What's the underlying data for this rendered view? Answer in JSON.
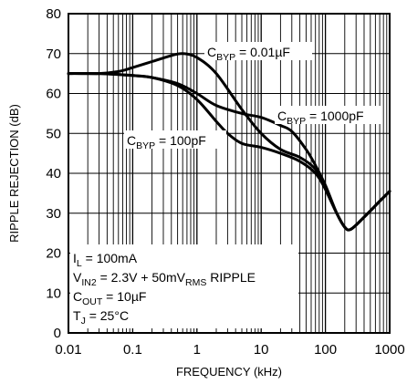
{
  "chart_data": {
    "type": "line",
    "xlabel": "FREQUENCY (kHz)",
    "ylabel": "RIPPLE REJECTION (dB)",
    "xscale": "log",
    "xlim": [
      0.01,
      1000
    ],
    "ylim": [
      0,
      80
    ],
    "grid": true,
    "x_ticks": [
      "0.01",
      "0.1",
      "1",
      "10",
      "100",
      "1000"
    ],
    "y_ticks": [
      "0",
      "10",
      "20",
      "30",
      "40",
      "50",
      "60",
      "70",
      "80"
    ],
    "series": [
      {
        "name": "CBYP = 0.01µF",
        "x": [
          0.01,
          0.03,
          0.06,
          0.1,
          0.2,
          0.4,
          0.6,
          1,
          2,
          5,
          10,
          20,
          40,
          70,
          100,
          150,
          200,
          250,
          400,
          700,
          1000
        ],
        "y": [
          65,
          65,
          65.5,
          66.5,
          68,
          69.5,
          70,
          69,
          65,
          56,
          50,
          46,
          44,
          41,
          36,
          30,
          26.5,
          26,
          29,
          33,
          35.5
        ]
      },
      {
        "name": "CBYP = 1000pF",
        "x": [
          0.01,
          0.03,
          0.1,
          0.2,
          0.5,
          1,
          2,
          5,
          10,
          20,
          30,
          50,
          70,
          100,
          150,
          200,
          250,
          400,
          700,
          1000
        ],
        "y": [
          65,
          65,
          64.5,
          64,
          62.5,
          60,
          57,
          55,
          54,
          52,
          50.5,
          46,
          42,
          37,
          30,
          26.5,
          26,
          29,
          33,
          35.5
        ]
      },
      {
        "name": "CBYP = 100pF",
        "x": [
          0.01,
          0.03,
          0.1,
          0.2,
          0.5,
          1,
          2,
          3,
          5,
          10,
          20,
          40,
          70,
          100,
          150,
          200,
          250,
          400,
          700,
          1000
        ],
        "y": [
          65,
          65,
          64.5,
          64,
          62,
          58.5,
          53,
          50,
          47.5,
          46.5,
          45,
          43,
          40,
          36,
          30,
          26.5,
          26,
          29,
          33,
          35.5
        ]
      }
    ],
    "annotations": {
      "c1": {
        "main": "C",
        "sub": "BYP",
        "rest": " = 0.01µF"
      },
      "c2": {
        "main": "C",
        "sub": "BYP",
        "rest": " = 1000pF"
      },
      "c3": {
        "main": "C",
        "sub": "BYP",
        "rest": " = 100pF"
      },
      "cond1": {
        "main": "I",
        "sub": "L",
        "rest": " = 100mA"
      },
      "cond2": {
        "main": "V",
        "sub": "IN2",
        "rest": " = 2.3V + 50mV",
        "sub2": "RMS",
        "rest2": " RIPPLE"
      },
      "cond3": {
        "main": "C",
        "sub": "OUT",
        "rest": " = 10µF"
      },
      "cond4": {
        "main": "T",
        "sub": "J",
        "rest": " = 25°C"
      }
    }
  }
}
